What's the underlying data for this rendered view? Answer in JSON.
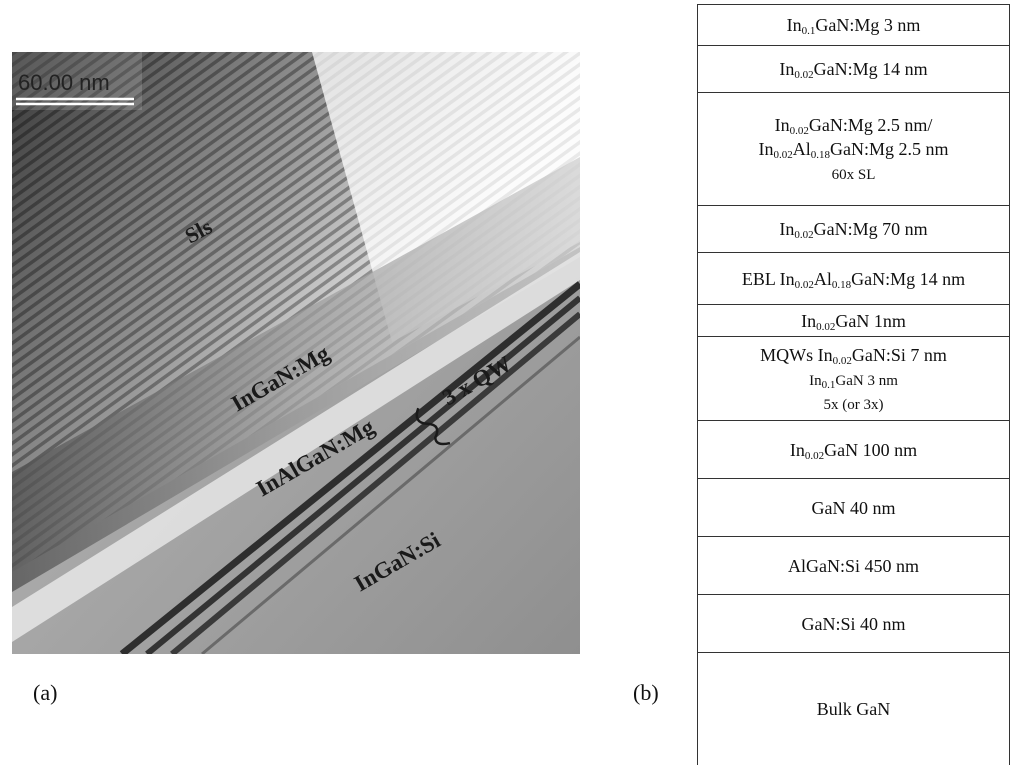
{
  "panel_a": {
    "letter": "(a)",
    "scale_bar": "60.00 nm",
    "labels": {
      "sls": "Sls",
      "ingan_mg": "InGaN:Mg",
      "inalgan_mg": "InAlGaN:Mg",
      "qw": "3 x QW",
      "ingan_si": "InGaN:Si"
    }
  },
  "panel_b": {
    "letter": "(b)",
    "layers": [
      {
        "lines": [
          [
            [
              "In",
              ""
            ],
            [
              "0.1",
              "sub"
            ],
            [
              "GaN:Mg 3 nm",
              ""
            ]
          ]
        ]
      },
      {
        "lines": [
          [
            [
              "In",
              ""
            ],
            [
              "0.02",
              "sub"
            ],
            [
              "GaN:Mg 14 nm",
              ""
            ]
          ]
        ]
      },
      {
        "lines": [
          [
            [
              "In",
              ""
            ],
            [
              "0.02",
              "sub"
            ],
            [
              "GaN:Mg 2.5 nm/",
              ""
            ]
          ],
          [
            [
              "In",
              ""
            ],
            [
              "0.02",
              "sub"
            ],
            [
              "Al",
              ""
            ],
            [
              "0.18",
              "sub"
            ],
            [
              "GaN:Mg 2.5 nm",
              ""
            ]
          ],
          [
            [
              "60x SL",
              "sm"
            ]
          ]
        ]
      },
      {
        "lines": [
          [
            [
              "In",
              ""
            ],
            [
              "0.02",
              "sub"
            ],
            [
              "GaN:Mg 70 nm",
              ""
            ]
          ]
        ]
      },
      {
        "lines": [
          [
            [
              "EBL In",
              ""
            ],
            [
              "0.02",
              "sub"
            ],
            [
              "Al",
              ""
            ],
            [
              "0.18",
              "sub"
            ],
            [
              "GaN:Mg 14 nm",
              ""
            ]
          ]
        ]
      },
      {
        "lines": [
          [
            [
              "In",
              ""
            ],
            [
              "0.02",
              "sub"
            ],
            [
              "GaN 1nm",
              ""
            ]
          ]
        ]
      },
      {
        "lines": [
          [
            [
              "MQWs In",
              ""
            ],
            [
              "0.02",
              "sub"
            ],
            [
              "GaN:Si 7 nm",
              ""
            ]
          ],
          [
            [
              "In",
              "sm"
            ],
            [
              "0.1",
              "sub"
            ],
            [
              "GaN 3 nm",
              "sm"
            ]
          ],
          [
            [
              "5x (or 3x)",
              "sm"
            ]
          ]
        ]
      },
      {
        "lines": [
          [
            [
              "In",
              ""
            ],
            [
              "0.02",
              "sub"
            ],
            [
              "GaN 100 nm",
              ""
            ]
          ]
        ]
      },
      {
        "lines": [
          [
            [
              "GaN 40 nm",
              ""
            ]
          ]
        ]
      },
      {
        "lines": [
          [
            [
              "AlGaN:Si 450 nm",
              ""
            ]
          ]
        ]
      },
      {
        "lines": [
          [
            [
              "GaN:Si 40 nm",
              ""
            ]
          ]
        ]
      },
      {
        "lines": [
          [
            [
              "Bulk GaN",
              ""
            ]
          ]
        ]
      }
    ]
  }
}
